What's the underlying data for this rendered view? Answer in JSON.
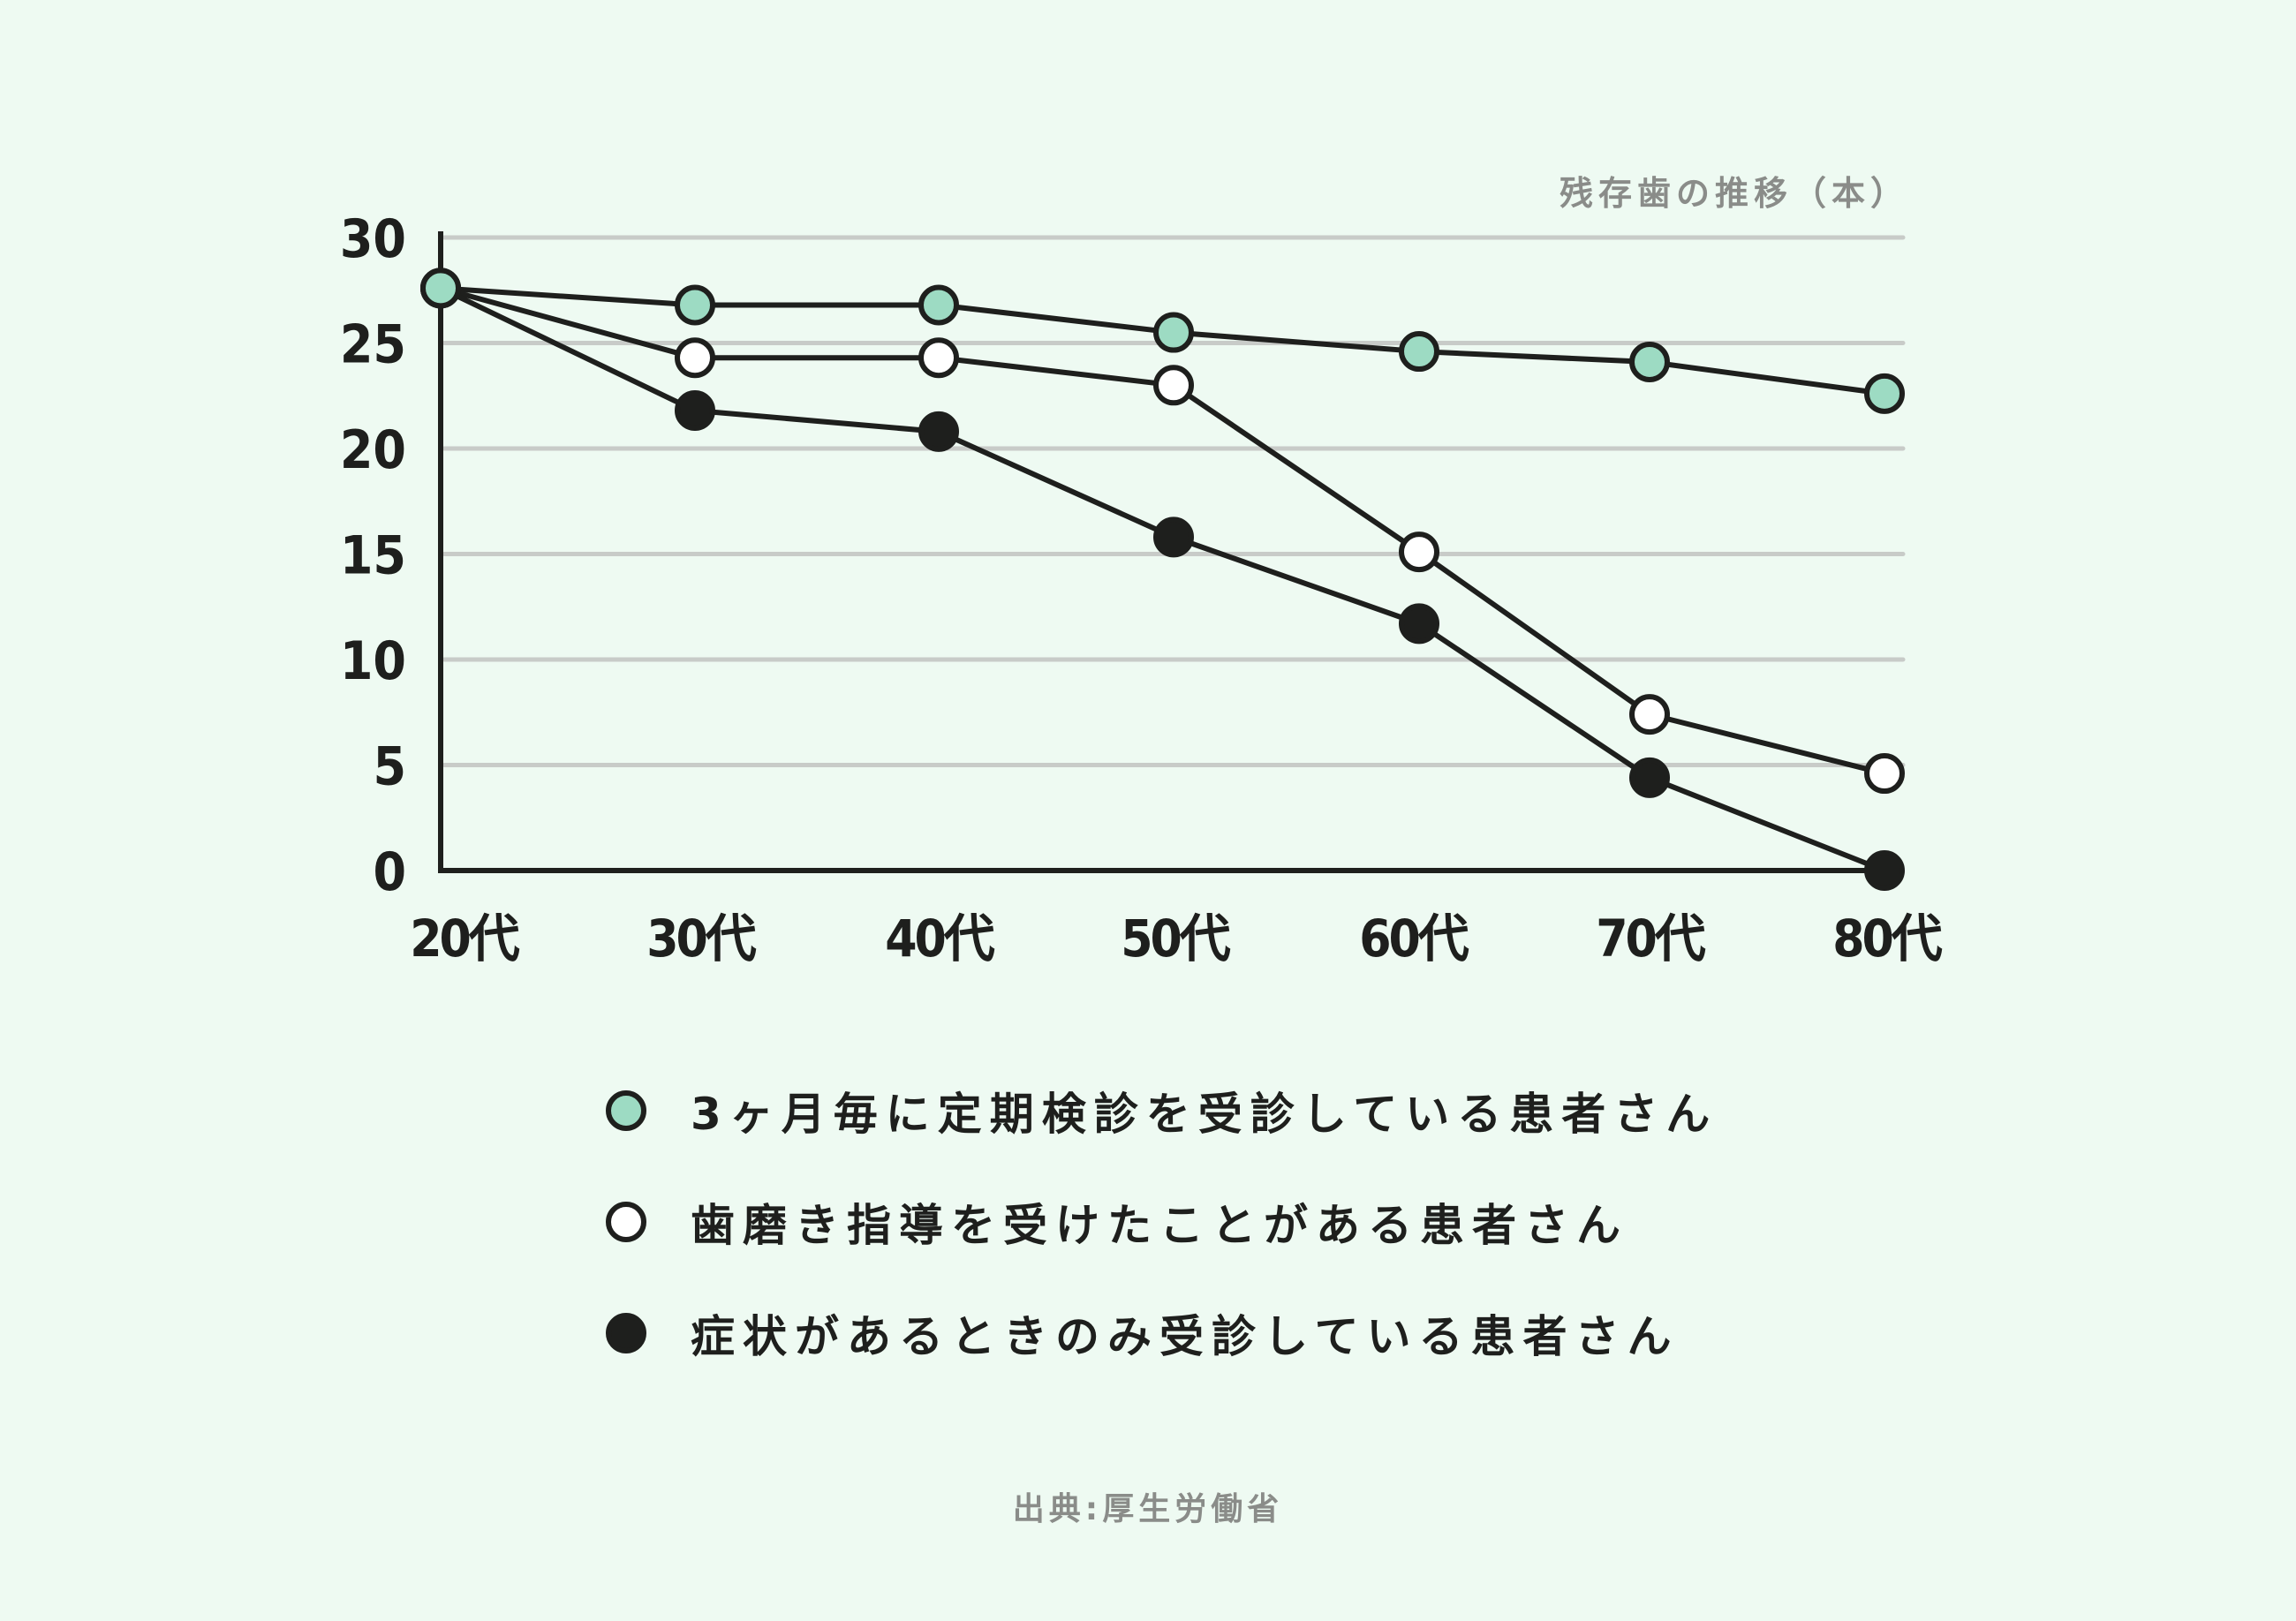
{
  "colors": {
    "background": "#eefaf2",
    "ink": "#1e1f1d",
    "grid": "#c8cbc8",
    "muted_text": "#8a8c89",
    "green_fill": "#9ddbc3",
    "white_fill": "#ffffff",
    "black_fill": "#1e1f1d"
  },
  "chart_data": {
    "type": "line",
    "title": "残存歯の推移（本）",
    "xlabel": "",
    "ylabel": "残存歯の推移（本）",
    "categories": [
      "20代",
      "30代",
      "40代",
      "50代",
      "60代",
      "70代",
      "80代"
    ],
    "y_ticks": [
      0,
      5,
      10,
      15,
      20,
      25,
      30
    ],
    "ylim": [
      0,
      30
    ],
    "grid": true,
    "legend_position": "bottom",
    "series": [
      {
        "name": "3ヶ月毎に定期検診を受診している患者さん",
        "marker": "green-filled-circle",
        "values": [
          27.6,
          26.8,
          26.8,
          25.5,
          24.6,
          24.1,
          22.6
        ]
      },
      {
        "name": "歯磨き指導を受けたことがある患者さん",
        "marker": "white-filled-circle",
        "values": [
          27.6,
          24.3,
          24.3,
          23.0,
          15.1,
          7.4,
          4.6
        ]
      },
      {
        "name": "症状があるときのみ受診している患者さん",
        "marker": "black-filled-circle",
        "values": [
          27.6,
          21.8,
          20.8,
          15.8,
          11.7,
          4.4,
          0
        ]
      }
    ],
    "source": "出典:厚生労働省"
  },
  "chart": {
    "title": "残存歯の推移（本）"
  },
  "legend": {
    "items": [
      {
        "label": "3ヶ月毎に定期検診を受診している患者さん",
        "marker_color": "#9ddbc3"
      },
      {
        "label": "歯磨き指導を受けたことがある患者さん",
        "marker_color": "#ffffff"
      },
      {
        "label": "症状があるときのみ受診している患者さん",
        "marker_color": "#1e1f1d"
      }
    ]
  },
  "footer": {
    "source": "出典:厚生労働省"
  }
}
